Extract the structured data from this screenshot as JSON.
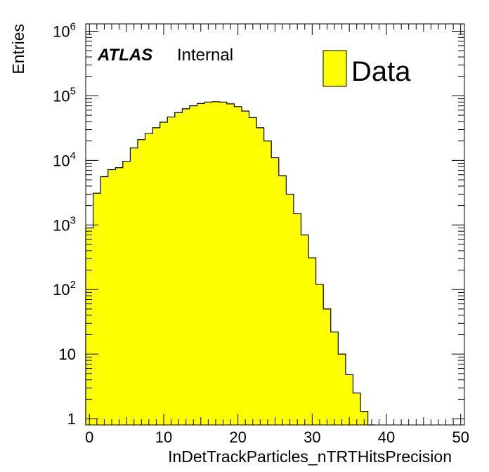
{
  "chart_data": {
    "type": "bar",
    "title": "",
    "xlabel": "InDetTrackParticles_nTRTHitsPrecision",
    "ylabel": "Entries",
    "xlim": [
      -0.5,
      50.5
    ],
    "ylim": [
      0.8,
      1300000
    ],
    "yscale": "log",
    "grid": false,
    "legend_position": "top-right",
    "x_ticks": [
      0,
      10,
      20,
      30,
      40,
      50
    ],
    "y_ticks": [
      {
        "value": 1,
        "base": "1",
        "exp": ""
      },
      {
        "value": 10,
        "base": "10",
        "exp": ""
      },
      {
        "value": 100,
        "base": "10",
        "exp": "2"
      },
      {
        "value": 1000,
        "base": "10",
        "exp": "3"
      },
      {
        "value": 10000,
        "base": "10",
        "exp": "4"
      },
      {
        "value": 100000,
        "base": "10",
        "exp": "5"
      },
      {
        "value": 1000000,
        "base": "10",
        "exp": "6"
      }
    ],
    "bin_width": 1,
    "bin_start": -0.5,
    "values": [
      900,
      3100,
      5600,
      7200,
      7700,
      9700,
      15600,
      21000,
      26000,
      32000,
      39000,
      47000,
      55000,
      63000,
      70000,
      76000,
      80000,
      81000,
      80000,
      75000,
      68000,
      58000,
      46000,
      32000,
      20000,
      11000,
      5800,
      3000,
      1500,
      700,
      310,
      120,
      50,
      22,
      10,
      4.8,
      2.5,
      1.3,
      0.8,
      0,
      0,
      0,
      0,
      0,
      0,
      0,
      0,
      0,
      0,
      0,
      0
    ],
    "series": [
      {
        "name": "Data",
        "color": "#ffff00"
      }
    ],
    "annotations": {
      "experiment": "ATLAS",
      "status": "Internal"
    }
  },
  "colors": {
    "fill": "#ffff00",
    "line": "#000000"
  }
}
